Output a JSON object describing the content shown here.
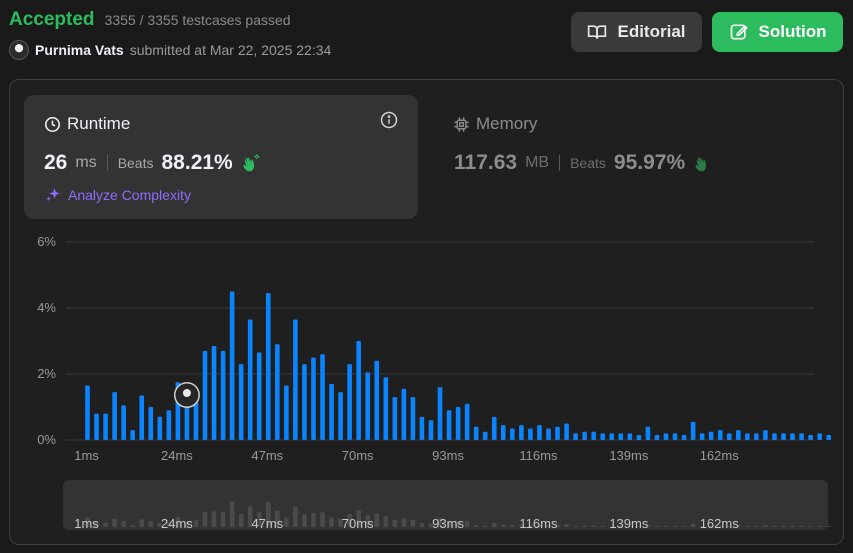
{
  "header": {
    "status": "Accepted",
    "testcases": "3355 / 3355 testcases passed",
    "user_name": "Purnima Vats",
    "submitted_text": "submitted at Mar 22, 2025 22:34"
  },
  "buttons": {
    "editorial": "Editorial",
    "solution": "Solution"
  },
  "runtime": {
    "title": "Runtime",
    "value": "26",
    "unit": "ms",
    "beats_label": "Beats",
    "beats": "88.21%",
    "analyze": "Analyze Complexity"
  },
  "memory": {
    "title": "Memory",
    "value": "117.63",
    "unit": "MB",
    "beats_label": "Beats",
    "beats": "95.97%"
  },
  "colors": {
    "accepted": "#2cbb5d",
    "bar": "#0a84ff",
    "bar_muted": "#4a4a4a",
    "analyze": "#8d6bff"
  },
  "icons": {
    "runtime": "clock-icon",
    "memory": "chip-icon",
    "info": "info-icon",
    "editorial": "book-icon",
    "solution": "edit-icon",
    "analyze": "sparkle-icon",
    "beats": "clap-icon"
  },
  "chart_data": {
    "type": "bar",
    "ylabel": "",
    "xlabel": "",
    "ylim": [
      0,
      6
    ],
    "yticks": [
      "0%",
      "2%",
      "4%",
      "6%"
    ],
    "xtick_labels": [
      "1ms",
      "24ms",
      "47ms",
      "70ms",
      "93ms",
      "116ms",
      "139ms",
      "162ms"
    ],
    "xtick_values": [
      1,
      24,
      47,
      70,
      93,
      116,
      139,
      162
    ],
    "bin_start": 1,
    "bin_width": 2.3,
    "user_bin_index": 11,
    "values": [
      1.65,
      0.8,
      0.8,
      1.45,
      1.05,
      0.3,
      1.35,
      1.0,
      0.7,
      0.9,
      1.75,
      1.0,
      1.3,
      2.7,
      2.85,
      2.7,
      4.5,
      2.3,
      3.65,
      2.65,
      4.45,
      2.9,
      1.65,
      3.65,
      2.3,
      2.5,
      2.6,
      1.7,
      1.45,
      2.3,
      3.0,
      2.05,
      2.4,
      1.9,
      1.3,
      1.55,
      1.3,
      0.7,
      0.6,
      1.6,
      0.9,
      1.0,
      1.1,
      0.4,
      0.25,
      0.7,
      0.45,
      0.35,
      0.45,
      0.35,
      0.45,
      0.35,
      0.4,
      0.5,
      0.2,
      0.25,
      0.25,
      0.2,
      0.2,
      0.2,
      0.2,
      0.15,
      0.4,
      0.15,
      0.2,
      0.2,
      0.15,
      0.55,
      0.2,
      0.25,
      0.3,
      0.2,
      0.3,
      0.2,
      0.2,
      0.3,
      0.2,
      0.2,
      0.2,
      0.2,
      0.15,
      0.2,
      0.15
    ]
  }
}
